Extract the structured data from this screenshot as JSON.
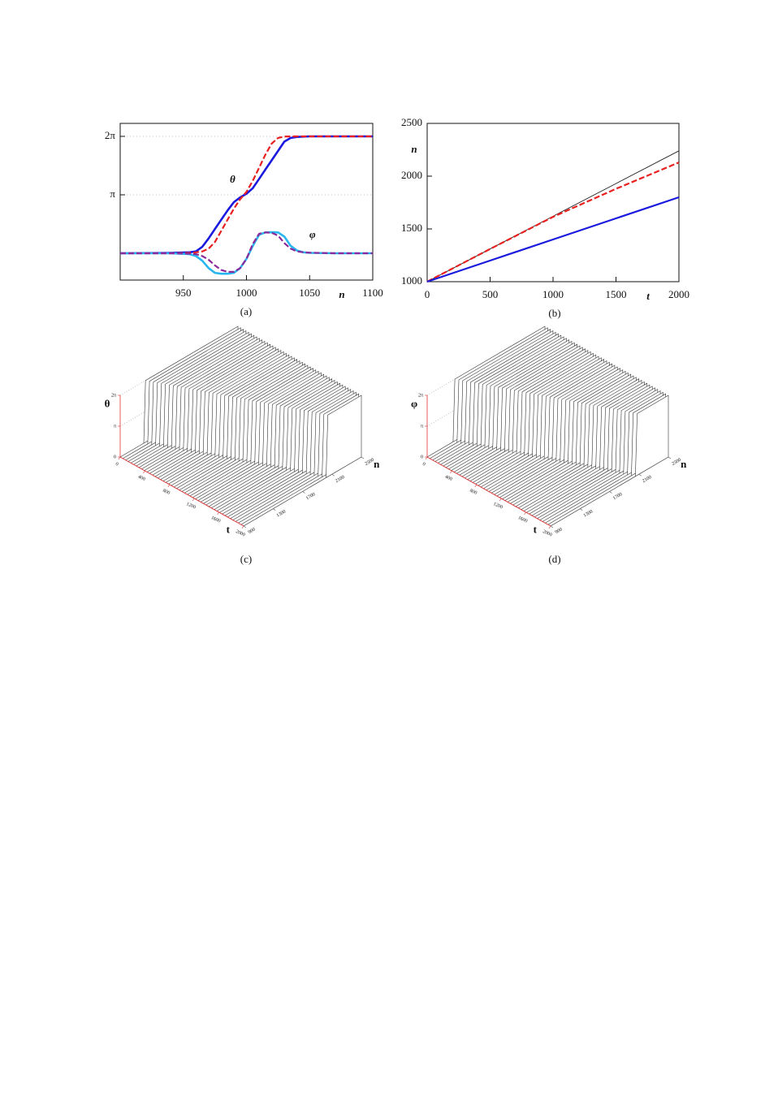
{
  "chart_data": [
    {
      "type": "line",
      "caption": "(a)",
      "xlabel": "n",
      "annotations": [
        "θ",
        "φ"
      ],
      "xlim": [
        900,
        1100
      ],
      "ylim": [
        -1.44,
        6.98
      ],
      "xticks": [
        950,
        1000,
        1050,
        1100
      ],
      "yticks": [
        {
          "value": 3.1416,
          "label": "π"
        },
        {
          "value": 6.2832,
          "label": "2π"
        }
      ],
      "grid": true,
      "x": [
        900,
        940,
        955,
        960,
        965,
        970,
        975,
        980,
        985,
        990,
        995,
        1000,
        1005,
        1010,
        1015,
        1020,
        1025,
        1030,
        1035,
        1040,
        1045,
        1050,
        1070,
        1100
      ],
      "series": [
        {
          "color": "#1a1adf",
          "dash": false,
          "width": 2.6,
          "values": [
            0,
            0.02,
            0.05,
            0.1,
            0.35,
            0.8,
            1.3,
            1.8,
            2.3,
            2.75,
            3.0,
            3.2,
            3.5,
            4.0,
            4.5,
            5.0,
            5.5,
            6.0,
            6.2,
            6.25,
            6.27,
            6.28,
            6.28,
            6.28
          ]
        },
        {
          "color": "#e82020",
          "dash": true,
          "width": 2.2,
          "values": [
            0,
            0,
            0.02,
            0.05,
            0.1,
            0.25,
            0.6,
            1.2,
            1.8,
            2.4,
            2.9,
            3.3,
            3.9,
            4.6,
            5.3,
            5.9,
            6.2,
            6.27,
            6.28,
            6.28,
            6.28,
            6.28,
            6.28,
            6.28
          ]
        },
        {
          "color": "#29b6f0",
          "dash": false,
          "width": 2.6,
          "values": [
            0,
            0,
            -0.05,
            -0.15,
            -0.4,
            -0.8,
            -1.05,
            -1.1,
            -1.1,
            -1.05,
            -0.8,
            -0.3,
            0.4,
            1.0,
            1.12,
            1.13,
            1.12,
            0.9,
            0.4,
            0.15,
            0.05,
            0.02,
            0,
            0
          ]
        },
        {
          "color": "#8a2a9a",
          "dash": true,
          "width": 2.2,
          "values": [
            0,
            0,
            -0.02,
            -0.05,
            -0.15,
            -0.35,
            -0.65,
            -0.9,
            -1.0,
            -1.0,
            -0.8,
            -0.3,
            0.5,
            1.05,
            1.12,
            1.1,
            0.95,
            0.55,
            0.25,
            0.1,
            0.05,
            0.03,
            0,
            0
          ]
        }
      ]
    },
    {
      "type": "line",
      "caption": "(b)",
      "xlabel": "t",
      "ylabel": "n",
      "xlim": [
        0,
        2000
      ],
      "ylim": [
        1000,
        2500
      ],
      "xticks": [
        0,
        500,
        1000,
        1500,
        2000
      ],
      "yticks": [
        1000,
        1500,
        2000,
        2500
      ],
      "grid": false,
      "x": [
        0,
        500,
        1000,
        1500,
        2000
      ],
      "series": [
        {
          "color": "#222222",
          "dash": false,
          "width": 0.9,
          "values": [
            1000,
            1310,
            1620,
            1930,
            2240
          ]
        },
        {
          "color": "#e82020",
          "dash": true,
          "width": 2.2,
          "values": [
            1000,
            1310,
            1615,
            1880,
            2130
          ]
        },
        {
          "color": "#1a1adf",
          "dash": false,
          "width": 2.2,
          "values": [
            1000,
            1200,
            1400,
            1600,
            1800
          ]
        }
      ]
    },
    {
      "type": "surface3d",
      "caption": "(c)",
      "zlabel": "θ",
      "tlabel": "t",
      "nlabel": "n",
      "zlim": [
        0,
        6.2832
      ],
      "tlim": [
        0,
        2000
      ],
      "nlim": [
        900,
        2500
      ],
      "zticks": [
        0,
        {
          "value": 3.1416,
          "label": "π"
        },
        {
          "value": 6.2832,
          "label": "2π"
        }
      ],
      "tticks": [
        0,
        400,
        800,
        1200,
        1600,
        2000
      ],
      "nticks": [
        900,
        1300,
        1700,
        2100,
        2500
      ]
    },
    {
      "type": "surface3d",
      "caption": "(d)",
      "zlabel": "φ",
      "tlabel": "t",
      "nlabel": "n",
      "zlim": [
        0,
        6.2832
      ],
      "tlim": [
        0,
        2000
      ],
      "nlim": [
        900,
        2500
      ],
      "zticks": [
        0,
        {
          "value": 3.1416,
          "label": "π"
        },
        {
          "value": 6.2832,
          "label": "2π"
        }
      ],
      "tticks": [
        0,
        400,
        800,
        1200,
        1600,
        2000
      ],
      "nticks": [
        900,
        1300,
        1700,
        2100,
        2500
      ]
    }
  ]
}
